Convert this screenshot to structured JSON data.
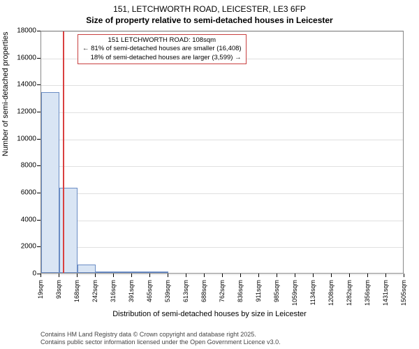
{
  "title_line1": "151, LETCHWORTH ROAD, LEICESTER, LE3 6FP",
  "title_line2": "Size of property relative to semi-detached houses in Leicester",
  "y_axis_label": "Number of semi-detached properties",
  "x_axis_label": "Distribution of semi-detached houses by size in Leicester",
  "footer_line1": "Contains HM Land Registry data © Crown copyright and database right 2025.",
  "footer_line2": "Contains public sector information licensed under the Open Government Licence v3.0.",
  "chart": {
    "type": "bar",
    "background_color": "#ffffff",
    "grid_color": "#e0e0e0",
    "bar_fill": "#d9e5f4",
    "bar_border": "#6a8cc4",
    "marker_color": "#d94040",
    "annotation_border": "#c84040",
    "ylim": [
      0,
      18000
    ],
    "ytick_step": 2000,
    "yticks": [
      0,
      2000,
      4000,
      6000,
      8000,
      10000,
      12000,
      14000,
      16000,
      18000
    ],
    "xticks": [
      "19sqm",
      "93sqm",
      "168sqm",
      "242sqm",
      "316sqm",
      "391sqm",
      "465sqm",
      "539sqm",
      "613sqm",
      "688sqm",
      "762sqm",
      "836sqm",
      "911sqm",
      "985sqm",
      "1059sqm",
      "1134sqm",
      "1208sqm",
      "1282sqm",
      "1356sqm",
      "1431sqm",
      "1505sqm"
    ],
    "bars": [
      {
        "x_start": 19,
        "x_end": 93,
        "value": 13400
      },
      {
        "x_start": 93,
        "x_end": 168,
        "value": 6300
      },
      {
        "x_start": 168,
        "x_end": 242,
        "value": 600
      },
      {
        "x_start": 242,
        "x_end": 316,
        "value": 80
      },
      {
        "x_start": 316,
        "x_end": 391,
        "value": 30
      },
      {
        "x_start": 391,
        "x_end": 465,
        "value": 15
      },
      {
        "x_start": 465,
        "x_end": 539,
        "value": 10
      }
    ],
    "x_range": [
      19,
      1505
    ],
    "marker_x": 108,
    "annotation": {
      "line1": "151 LETCHWORTH ROAD: 108sqm",
      "line2": "← 81% of semi-detached houses are smaller (16,408)",
      "line3": "18% of semi-detached houses are larger (3,599) →"
    },
    "title_fontsize": 12,
    "label_fontsize": 11,
    "tick_fontsize": 10,
    "annotation_fontsize": 9.5
  }
}
